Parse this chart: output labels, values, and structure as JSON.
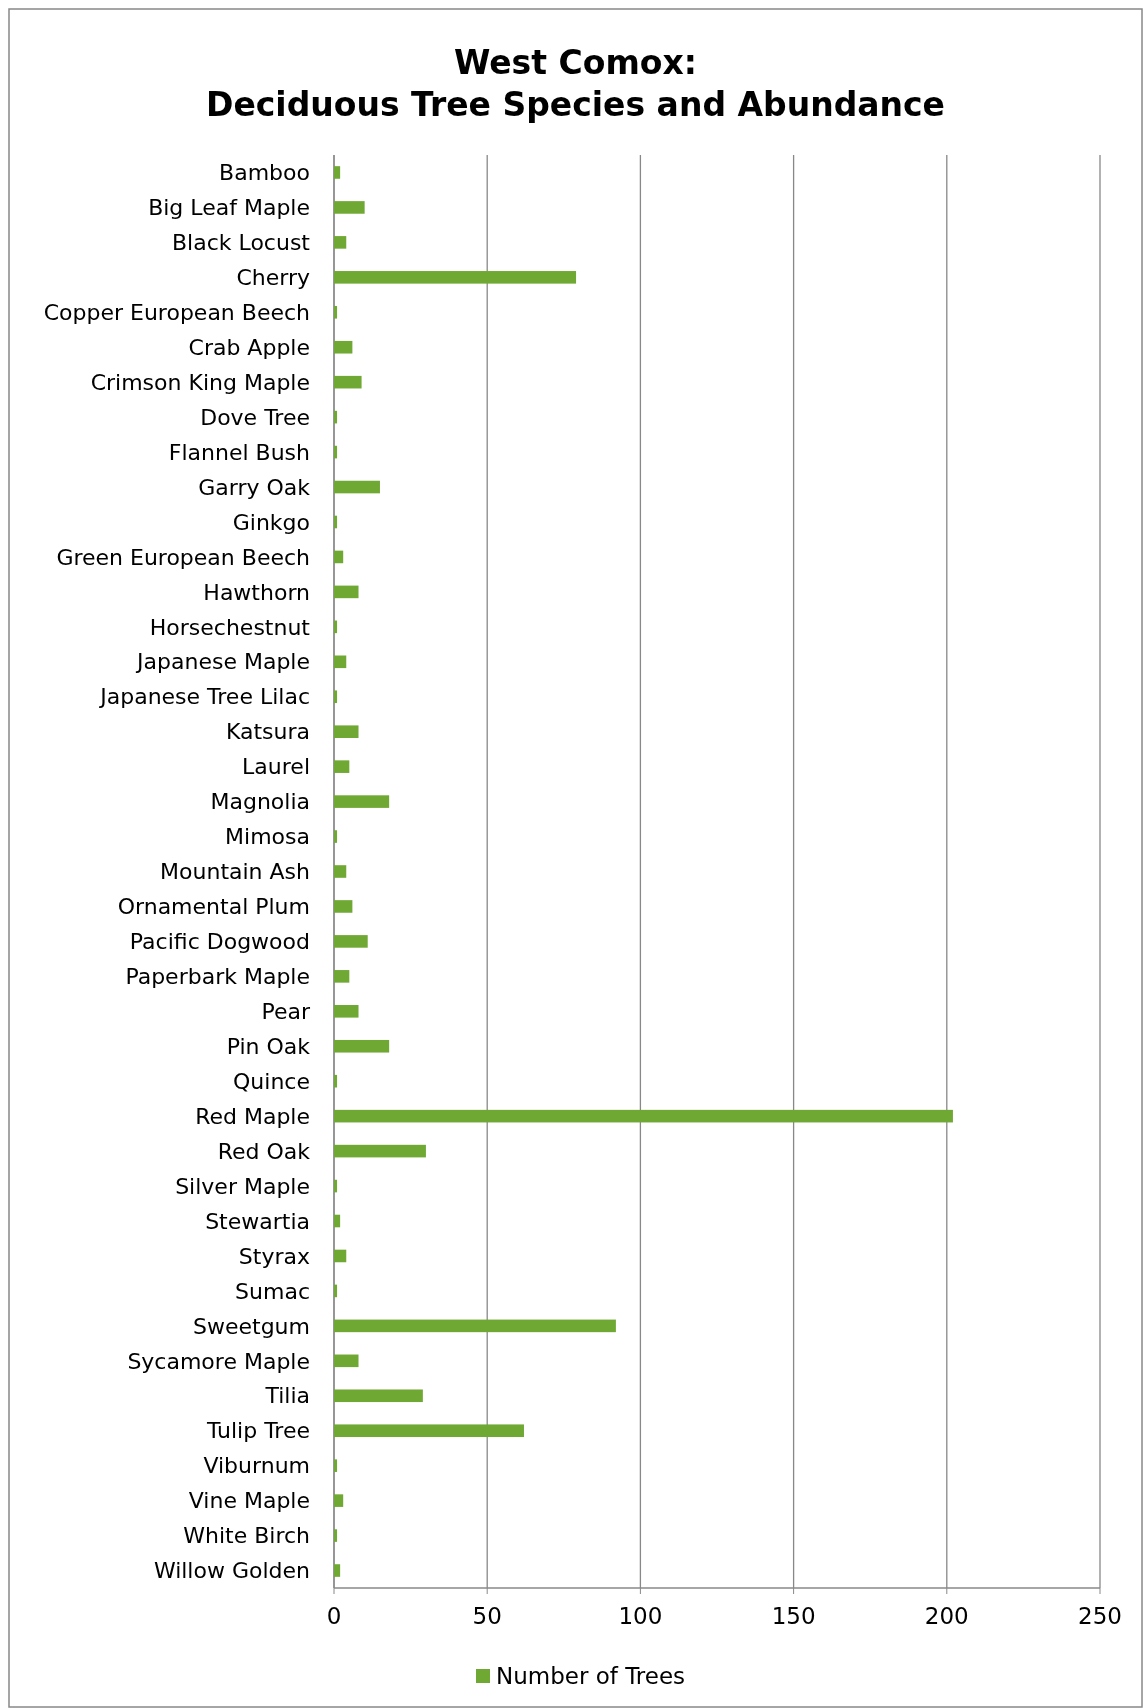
{
  "chart_data": {
    "type": "bar",
    "orientation": "horizontal",
    "title": "West Comox:\nDeciduous Tree Species and Abundance",
    "categories": [
      "Bamboo",
      "Big Leaf Maple",
      "Black Locust",
      "Cherry",
      "Copper European Beech",
      "Crab Apple",
      "Crimson King Maple",
      "Dove Tree",
      "Flannel Bush",
      "Garry Oak",
      "Ginkgo",
      "Green European Beech",
      "Hawthorn",
      "Horsechestnut",
      "Japanese Maple",
      "Japanese Tree Lilac",
      "Katsura",
      "Laurel",
      "Magnolia",
      "Mimosa",
      "Mountain Ash",
      "Ornamental Plum",
      "Pacific Dogwood",
      "Paperbark Maple",
      "Pear",
      "Pin Oak",
      "Quince",
      "Red Maple",
      "Red Oak",
      "Silver Maple",
      "Stewartia",
      "Styrax",
      "Sumac",
      "Sweetgum",
      "Sycamore Maple",
      "Tilia",
      "Tulip Tree",
      "Viburnum",
      "Vine Maple",
      "White Birch",
      "Willow Golden"
    ],
    "series": [
      {
        "name": "Number of Trees",
        "color": "#6fa833",
        "values": [
          2,
          10,
          4,
          79,
          1,
          6,
          9,
          1,
          1,
          15,
          1,
          3,
          8,
          1,
          4,
          1,
          8,
          5,
          18,
          1,
          4,
          6,
          11,
          5,
          8,
          18,
          1,
          202,
          30,
          1,
          2,
          4,
          1,
          92,
          8,
          29,
          62,
          1,
          3,
          1,
          2
        ]
      }
    ],
    "xlim": [
      0,
      250
    ],
    "xticks": [
      0,
      50,
      100,
      150,
      200,
      250
    ],
    "grid": "x",
    "legend": "bottom"
  }
}
